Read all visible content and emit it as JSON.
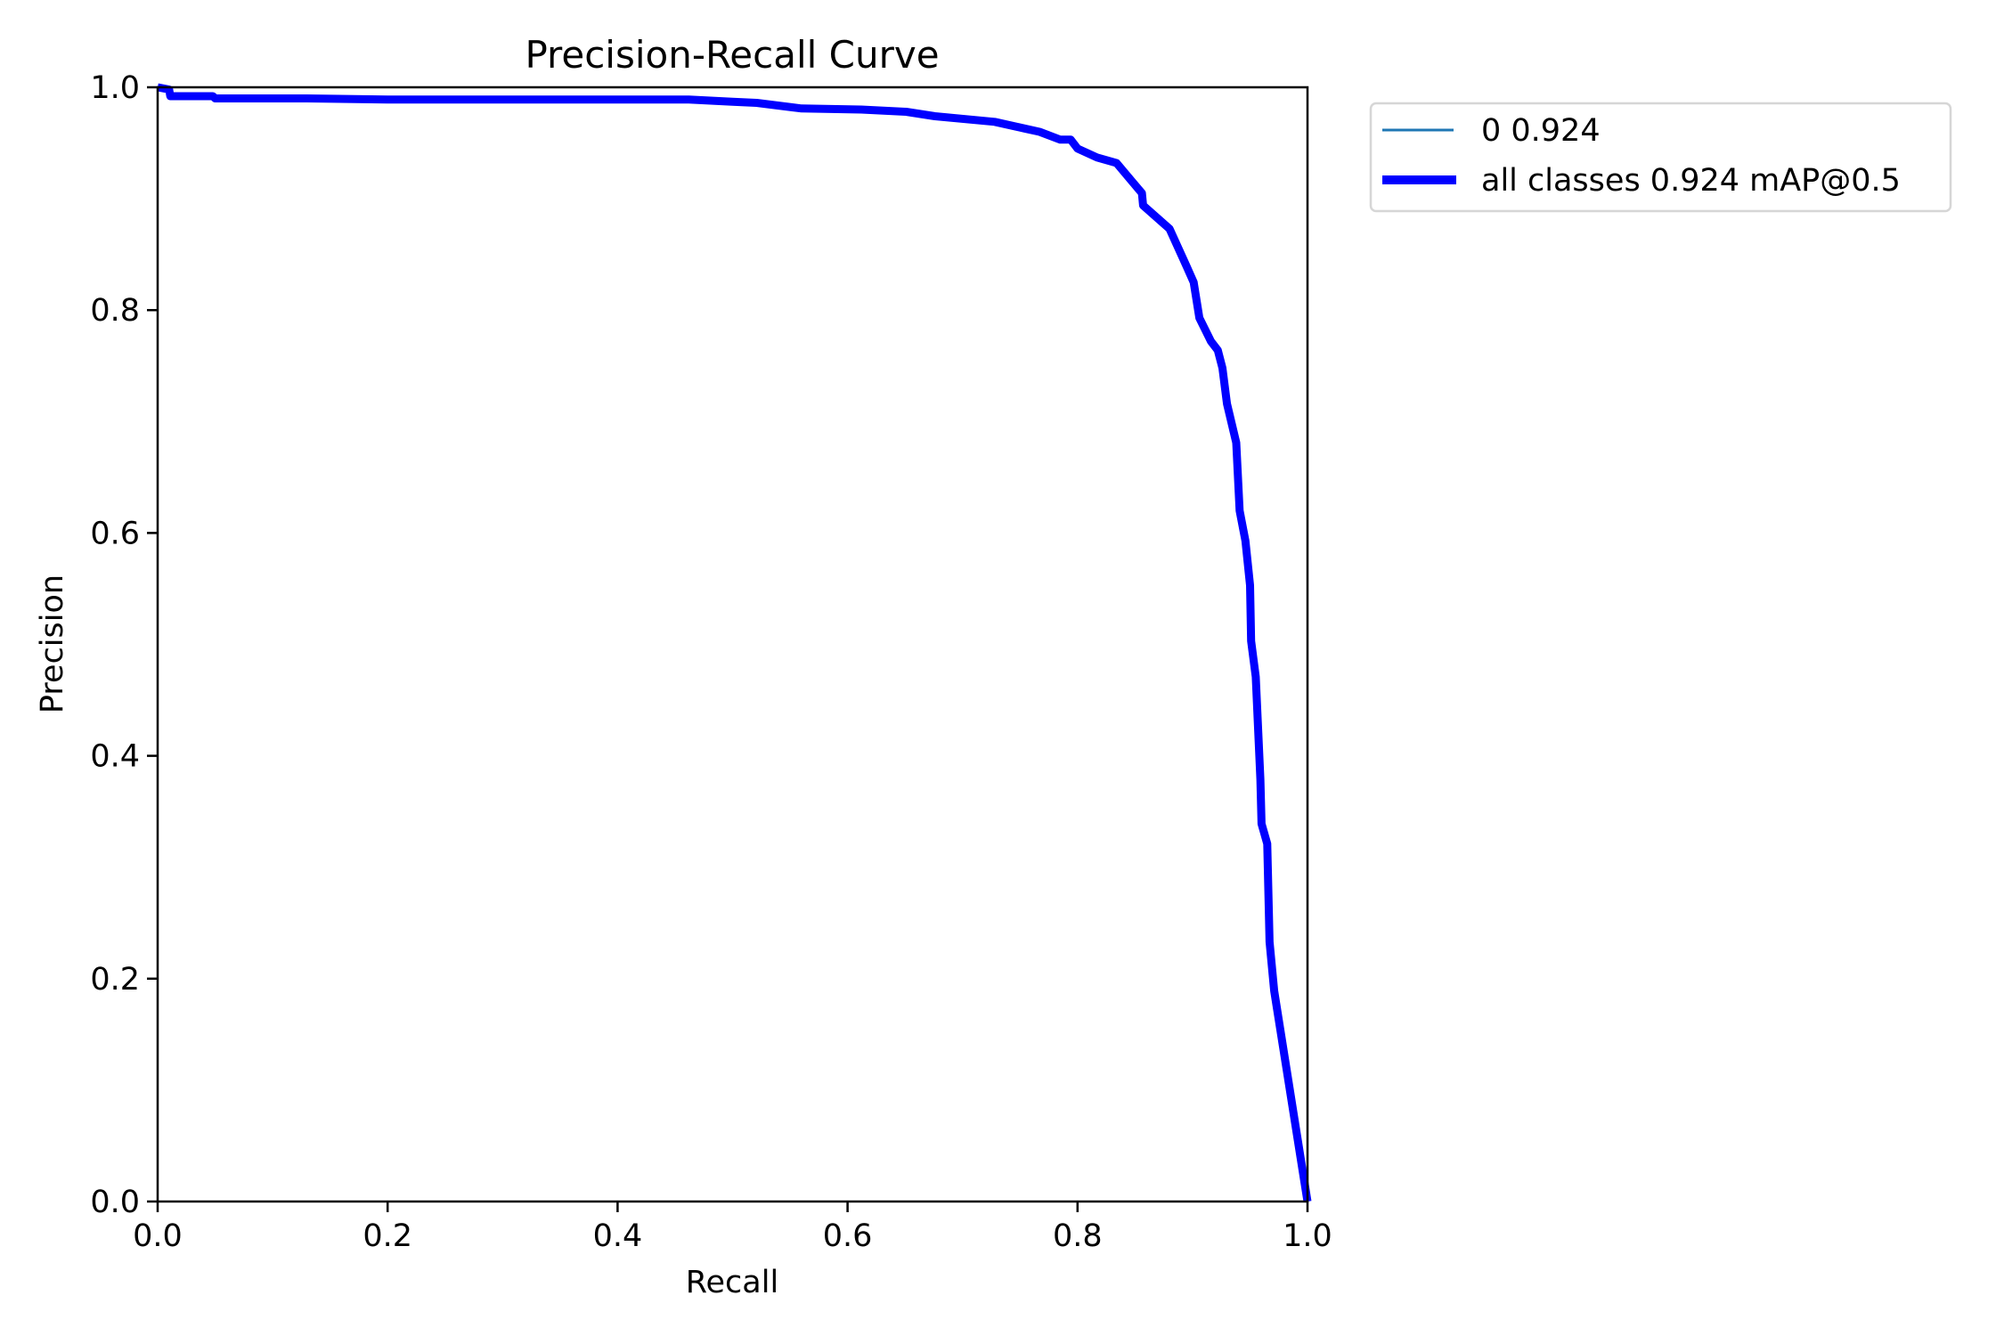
{
  "chart_data": {
    "type": "line",
    "title": "Precision-Recall Curve",
    "xlabel": "Recall",
    "ylabel": "Precision",
    "xlim": [
      0.0,
      1.0
    ],
    "ylim": [
      0.0,
      1.0
    ],
    "grid": false,
    "legend_position": "outside upper right",
    "xticks": [
      "0.0",
      "0.2",
      "0.4",
      "0.6",
      "0.8",
      "1.0"
    ],
    "yticks": [
      "0.0",
      "0.2",
      "0.4",
      "0.6",
      "0.8",
      "1.0"
    ],
    "series": [
      {
        "name": "0 0.924",
        "color": "#1f77b4",
        "linewidth": 1,
        "x": [
          0.0,
          0.01,
          0.011,
          0.048,
          0.05,
          0.13,
          0.2,
          0.3,
          0.4,
          0.462,
          0.5,
          0.521,
          0.56,
          0.612,
          0.651,
          0.676,
          0.728,
          0.754,
          0.767,
          0.785,
          0.794,
          0.8,
          0.817,
          0.834,
          0.847,
          0.856,
          0.857,
          0.88,
          0.895,
          0.901,
          0.906,
          0.916,
          0.922,
          0.926,
          0.93,
          0.938,
          0.941,
          0.946,
          0.95,
          0.951,
          0.955,
          0.959,
          0.96,
          0.965,
          0.967,
          0.971,
          1.0
        ],
        "y": [
          1.0,
          0.998,
          0.992,
          0.992,
          0.99,
          0.99,
          0.989,
          0.989,
          0.989,
          0.989,
          0.987,
          0.986,
          0.981,
          0.98,
          0.978,
          0.974,
          0.969,
          0.963,
          0.96,
          0.953,
          0.953,
          0.945,
          0.937,
          0.932,
          0.916,
          0.905,
          0.894,
          0.873,
          0.839,
          0.825,
          0.793,
          0.772,
          0.764,
          0.748,
          0.716,
          0.681,
          0.62,
          0.593,
          0.553,
          0.503,
          0.471,
          0.379,
          0.339,
          0.321,
          0.233,
          0.189,
          0.0
        ]
      },
      {
        "name": "all classes 0.924 mAP@0.5",
        "color": "#0000ff",
        "linewidth": 3,
        "x": [
          0.0,
          0.01,
          0.011,
          0.048,
          0.05,
          0.13,
          0.2,
          0.3,
          0.4,
          0.462,
          0.5,
          0.521,
          0.56,
          0.612,
          0.651,
          0.676,
          0.728,
          0.754,
          0.767,
          0.785,
          0.794,
          0.8,
          0.817,
          0.834,
          0.847,
          0.856,
          0.857,
          0.88,
          0.895,
          0.901,
          0.906,
          0.916,
          0.922,
          0.926,
          0.93,
          0.938,
          0.941,
          0.946,
          0.95,
          0.951,
          0.955,
          0.959,
          0.96,
          0.965,
          0.967,
          0.971,
          1.0
        ],
        "y": [
          1.0,
          0.998,
          0.992,
          0.992,
          0.99,
          0.99,
          0.989,
          0.989,
          0.989,
          0.989,
          0.987,
          0.986,
          0.981,
          0.98,
          0.978,
          0.974,
          0.969,
          0.963,
          0.96,
          0.953,
          0.953,
          0.945,
          0.937,
          0.932,
          0.916,
          0.905,
          0.894,
          0.873,
          0.839,
          0.825,
          0.793,
          0.772,
          0.764,
          0.748,
          0.716,
          0.681,
          0.62,
          0.593,
          0.553,
          0.503,
          0.471,
          0.379,
          0.339,
          0.321,
          0.233,
          0.189,
          0.0
        ]
      }
    ]
  },
  "legend": {
    "items": [
      {
        "label": "0 0.924",
        "color": "#1f77b4",
        "linewidth": 3
      },
      {
        "label": "all classes 0.924 mAP@0.5",
        "color": "#0000ff",
        "linewidth": 10
      }
    ]
  }
}
